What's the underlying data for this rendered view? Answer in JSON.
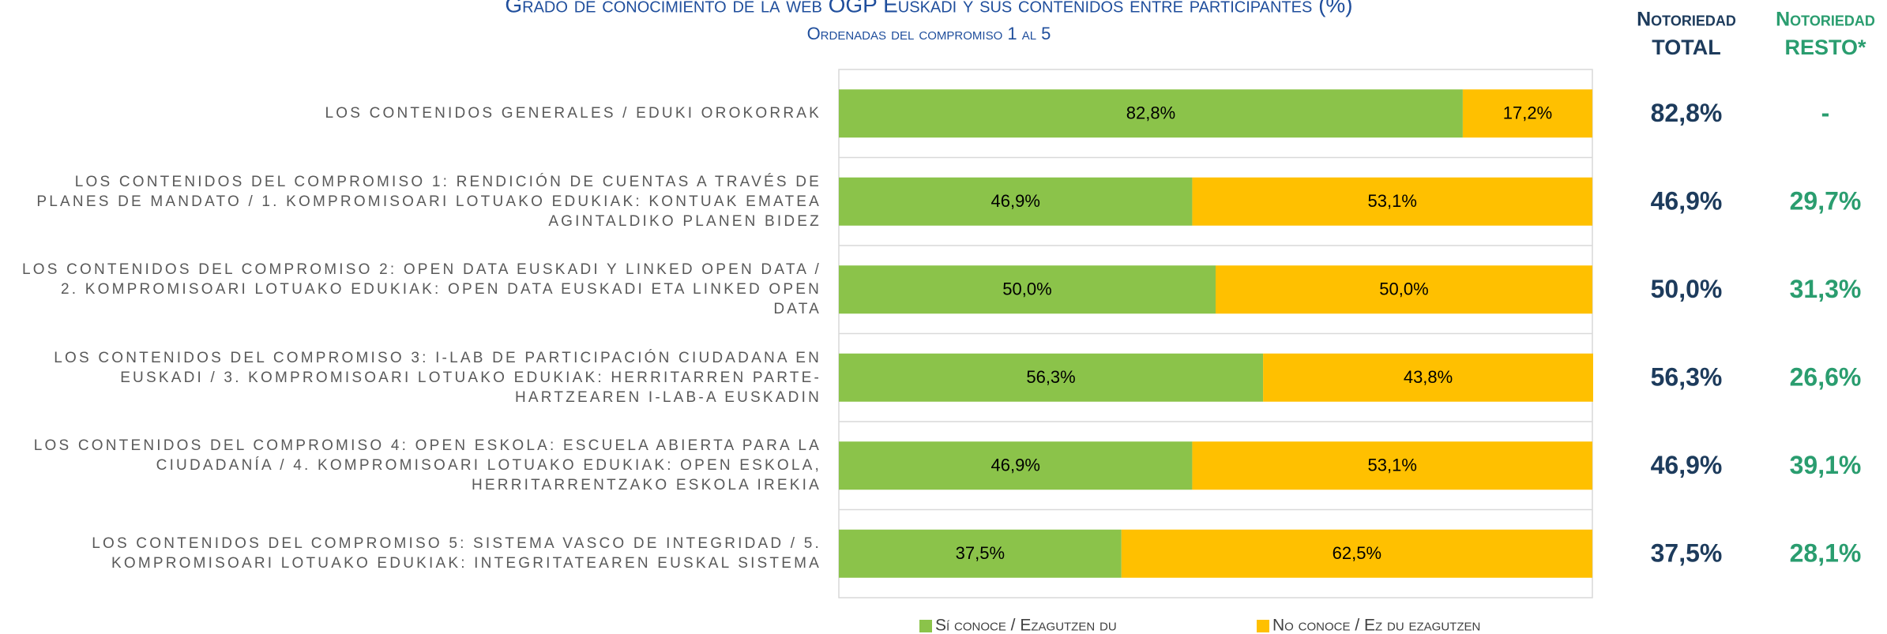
{
  "chart_data": {
    "type": "bar",
    "orientation": "horizontal",
    "stacked": true,
    "title": "Grado de conocimiento de la web OGP Euskadi y sus contenidos entre participantes (%)",
    "subtitle": "Ordenadas del compromiso 1 al 5",
    "categories": [
      "LOS CONTENIDOS GENERALES / EDUKI OROKORRAK",
      "LOS CONTENIDOS DEL COMPROMISO 1: RENDICIÓN DE CUENTAS A TRAVÉS DE PLANES DE MANDATO / 1. KOMPROMISOARI LOTUAKO EDUKIAK: KONTUAK EMATEA AGINTALDIKO PLANEN BIDEZ",
      "LOS CONTENIDOS DEL COMPROMISO 2: OPEN DATA EUSKADI Y LINKED OPEN DATA / 2. KOMPROMISOARI LOTUAKO EDUKIAK: OPEN DATA EUSKADI ETA LINKED OPEN DATA",
      "LOS CONTENIDOS DEL COMPROMISO 3: I-LAB DE PARTICIPACIÓN CIUDADANA EN EUSKADI / 3. KOMPROMISOARI LOTUAKO EDUKIAK: HERRITARREN PARTE-HARTZEAREN I-LAB-A EUSKADIN",
      "LOS CONTENIDOS DEL COMPROMISO 4: OPEN ESKOLA: ESCUELA ABIERTA PARA LA CIUDADANÍA / 4. KOMPROMISOARI LOTUAKO EDUKIAK: OPEN ESKOLA, HERRITARRENTZAKO ESKOLA IREKIA",
      "LOS CONTENIDOS DEL COMPROMISO 5: SISTEMA VASCO DE INTEGRIDAD / 5. KOMPROMISOARI LOTUAKO EDUKIAK: INTEGRITATEAREN EUSKAL SISTEMA"
    ],
    "series": [
      {
        "name": "Sí conoce / Ezagutzen du",
        "color": "#8bc34a",
        "values": [
          82.8,
          46.9,
          50.0,
          56.3,
          46.9,
          37.5
        ],
        "value_labels": [
          "82,8%",
          "46,9%",
          "50,0%",
          "56,3%",
          "46,9%",
          "37,5%"
        ]
      },
      {
        "name": "No conoce / Ez du ezagutzen",
        "color": "#ffc000",
        "values": [
          17.2,
          53.1,
          50.0,
          43.8,
          53.1,
          62.5
        ],
        "value_labels": [
          "17,2%",
          "53,1%",
          "50,0%",
          "43,8%",
          "53,1%",
          "62,5%"
        ]
      }
    ],
    "xlim": [
      0,
      100
    ],
    "legend": "bottom"
  },
  "table": {
    "columns": [
      {
        "header": [
          "Notoriedad",
          "TOTAL"
        ],
        "color": "#1d3b5c",
        "values": [
          "82,8%",
          "46,9%",
          "50,0%",
          "56,3%",
          "46,9%",
          "37,5%"
        ]
      },
      {
        "header": [
          "Notoriedad",
          "RESTO*"
        ],
        "color": "#2a9d6f",
        "values": [
          "-",
          "29,7%",
          "31,3%",
          "26,6%",
          "39,1%",
          "28,1%"
        ]
      }
    ]
  }
}
